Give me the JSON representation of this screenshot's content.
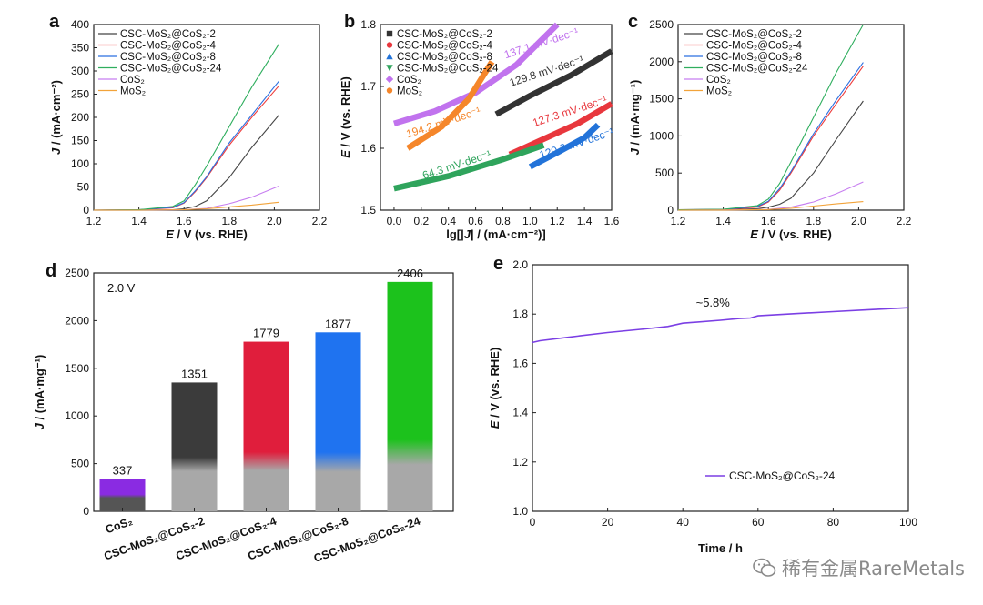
{
  "chart_data": [
    {
      "panel": "a",
      "type": "line",
      "xlabel": {
        "italic": "E",
        "rest": " / V (vs. RHE)"
      },
      "ylabel": {
        "italic": "J",
        "rest": " / (mA·cm⁻²)"
      },
      "xlim": [
        1.2,
        2.2
      ],
      "ylim": [
        0,
        400
      ],
      "xticks": [
        1.2,
        1.4,
        1.6,
        1.8,
        2.0,
        2.2
      ],
      "yticks": [
        0,
        50,
        100,
        150,
        200,
        250,
        300,
        350,
        400
      ],
      "legend_position": "top-left",
      "series": [
        {
          "name": "CSC-MoS₂@CoS₂-2",
          "color": "#444444",
          "x": [
            1.2,
            1.4,
            1.55,
            1.6,
            1.65,
            1.7,
            1.8,
            1.9,
            2.02
          ],
          "y": [
            0,
            0,
            1,
            3,
            8,
            20,
            70,
            135,
            205
          ]
        },
        {
          "name": "CSC-MoS₂@CoS₂-4",
          "color": "#ee3b3b",
          "x": [
            1.2,
            1.4,
            1.55,
            1.6,
            1.65,
            1.7,
            1.8,
            1.9,
            2.02
          ],
          "y": [
            0,
            1,
            5,
            15,
            40,
            70,
            140,
            200,
            268
          ]
        },
        {
          "name": "CSC-MoS₂@CoS₂-8",
          "color": "#2b6fe0",
          "x": [
            1.2,
            1.4,
            1.55,
            1.6,
            1.65,
            1.7,
            1.8,
            1.9,
            2.02
          ],
          "y": [
            0,
            1,
            6,
            16,
            42,
            72,
            145,
            205,
            278
          ]
        },
        {
          "name": "CSC-MoS₂@CoS₂-24",
          "color": "#2fae5e",
          "x": [
            1.2,
            1.4,
            1.55,
            1.6,
            1.65,
            1.7,
            1.8,
            1.9,
            2.02
          ],
          "y": [
            0,
            1,
            8,
            20,
            55,
            95,
            180,
            265,
            358
          ]
        },
        {
          "name": "CoS₂",
          "color": "#c77ef0",
          "x": [
            1.2,
            1.4,
            1.6,
            1.7,
            1.8,
            1.9,
            2.02
          ],
          "y": [
            0,
            0,
            1,
            4,
            14,
            28,
            52
          ]
        },
        {
          "name": "MoS₂",
          "color": "#f2a33a",
          "x": [
            1.2,
            1.4,
            1.6,
            1.7,
            1.8,
            1.9,
            2.02
          ],
          "y": [
            0,
            0,
            1,
            3,
            7,
            11,
            17
          ]
        }
      ]
    },
    {
      "panel": "b",
      "type": "line",
      "xlabel": {
        "pre": "lg[|",
        "italic": "J",
        "rest": "| / (mA·cm⁻²)]"
      },
      "ylabel": {
        "italic": "E",
        "rest": " / V (vs. RHE)"
      },
      "xlim": [
        -0.1,
        1.6
      ],
      "ylim": [
        1.5,
        1.8
      ],
      "xticks": [
        0.0,
        0.2,
        0.4,
        0.6,
        0.8,
        1.0,
        1.2,
        1.4,
        1.6
      ],
      "yticks": [
        1.5,
        1.6,
        1.7,
        1.8
      ],
      "legend_position": "top-left",
      "legend": [
        {
          "name": "CSC-MoS₂@CoS₂-2",
          "color": "#333333",
          "marker": "square"
        },
        {
          "name": "CSC-MoS₂@CoS₂-4",
          "color": "#e8373d",
          "marker": "circle"
        },
        {
          "name": "CSC-MoS₂@CoS₂-8",
          "color": "#2273d9",
          "marker": "triangle-up"
        },
        {
          "name": "CSC-MoS₂@CoS₂-24",
          "color": "#2fa45c",
          "marker": "triangle-down"
        },
        {
          "name": "CoS₂",
          "color": "#c173ee",
          "marker": "diamond"
        },
        {
          "name": "MoS₂",
          "color": "#f5862a",
          "marker": "circle"
        }
      ],
      "series": [
        {
          "color": "#333333",
          "x": [
            0.75,
            1.0,
            1.3,
            1.6
          ],
          "y": [
            1.655,
            1.685,
            1.718,
            1.757
          ]
        },
        {
          "color": "#e8373d",
          "x": [
            0.85,
            1.1,
            1.35,
            1.6
          ],
          "y": [
            1.59,
            1.615,
            1.64,
            1.672
          ]
        },
        {
          "color": "#2273d9",
          "x": [
            1.0,
            1.2,
            1.4,
            1.5
          ],
          "y": [
            1.57,
            1.593,
            1.617,
            1.638
          ]
        },
        {
          "color": "#2fa45c",
          "x": [
            0.0,
            0.4,
            0.8,
            1.1
          ],
          "y": [
            1.535,
            1.555,
            1.582,
            1.605
          ]
        },
        {
          "color": "#c173ee",
          "x": [
            0.0,
            0.3,
            0.6,
            0.9,
            1.2
          ],
          "y": [
            1.64,
            1.66,
            1.69,
            1.735,
            1.8
          ]
        },
        {
          "color": "#f5862a",
          "x": [
            0.1,
            0.35,
            0.55,
            0.72
          ],
          "y": [
            1.6,
            1.635,
            1.68,
            1.74
          ]
        }
      ],
      "annotations": [
        {
          "text": "137.1 mV·dec⁻¹",
          "color": "#c173ee",
          "x": 0.82,
          "y": 1.745
        },
        {
          "text": "129.8 mV·dec⁻¹",
          "color": "#333333",
          "x": 0.86,
          "y": 1.7
        },
        {
          "text": "194.2 mV·dec⁻¹",
          "color": "#f5862a",
          "x": 0.1,
          "y": 1.617
        },
        {
          "text": "127.3 mV·dec⁻¹",
          "color": "#e8373d",
          "x": 1.03,
          "y": 1.635
        },
        {
          "text": "64.3 mV·dec⁻¹",
          "color": "#2fa45c",
          "x": 0.22,
          "y": 1.55
        },
        {
          "text": "120.2 mV·dec⁻¹",
          "color": "#2273d9",
          "x": 1.08,
          "y": 1.583
        }
      ]
    },
    {
      "panel": "c",
      "type": "line",
      "xlabel": {
        "italic": "E",
        "rest": " / V (vs. RHE)"
      },
      "ylabel": {
        "italic": "J",
        "rest": " / (mA·mg⁻¹)"
      },
      "xlim": [
        1.2,
        2.2
      ],
      "ylim": [
        0,
        2500
      ],
      "xticks": [
        1.2,
        1.4,
        1.6,
        1.8,
        2.0,
        2.2
      ],
      "yticks": [
        0,
        500,
        1000,
        1500,
        2000,
        2500
      ],
      "legend_position": "top-left",
      "series": [
        {
          "name": "CSC-MoS₂@CoS₂-2",
          "color": "#444444",
          "x": [
            1.2,
            1.4,
            1.55,
            1.6,
            1.65,
            1.7,
            1.8,
            1.9,
            2.02
          ],
          "y": [
            0,
            5,
            20,
            40,
            80,
            160,
            500,
            950,
            1470
          ]
        },
        {
          "name": "CSC-MoS₂@CoS₂-4",
          "color": "#ee3b3b",
          "x": [
            1.2,
            1.4,
            1.55,
            1.6,
            1.65,
            1.7,
            1.8,
            1.9,
            2.02
          ],
          "y": [
            5,
            10,
            40,
            110,
            270,
            500,
            1000,
            1430,
            1940
          ]
        },
        {
          "name": "CSC-MoS₂@CoS₂-8",
          "color": "#2b6fe0",
          "x": [
            1.2,
            1.4,
            1.55,
            1.6,
            1.65,
            1.7,
            1.8,
            1.9,
            2.02
          ],
          "y": [
            5,
            10,
            50,
            120,
            290,
            520,
            1030,
            1480,
            1990
          ]
        },
        {
          "name": "CSC-MoS₂@CoS₂-24",
          "color": "#2fae5e",
          "x": [
            1.2,
            1.4,
            1.55,
            1.6,
            1.65,
            1.7,
            1.8,
            1.9,
            2.02
          ],
          "y": [
            5,
            12,
            60,
            150,
            360,
            650,
            1250,
            1850,
            2500
          ]
        },
        {
          "name": "CoS₂",
          "color": "#c77ef0",
          "x": [
            1.2,
            1.4,
            1.6,
            1.7,
            1.8,
            1.9,
            2.02
          ],
          "y": [
            0,
            2,
            10,
            40,
            110,
            220,
            380
          ]
        },
        {
          "name": "MoS₂",
          "color": "#f2a33a",
          "x": [
            1.2,
            1.4,
            1.6,
            1.7,
            1.8,
            1.9,
            2.02
          ],
          "y": [
            0,
            1,
            8,
            25,
            55,
            85,
            115
          ]
        }
      ]
    },
    {
      "panel": "d",
      "type": "bar",
      "ylabel": {
        "italic": "J",
        "rest": " / (mA·mg⁻¹)"
      },
      "ylim": [
        0,
        2500
      ],
      "yticks": [
        0,
        500,
        1000,
        1500,
        2000,
        2500
      ],
      "inset_text": "2.0 V",
      "categories": [
        "CoS₂",
        "CSC-MoS₂@CoS₂-2",
        "CSC-MoS₂@CoS₂-4",
        "CSC-MoS₂@CoS₂-8",
        "CSC-MoS₂@CoS₂-24"
      ],
      "values": [
        337,
        1351,
        1779,
        1877,
        2406
      ],
      "value_labels": [
        "337",
        "1351",
        "1779",
        "1877",
        "2406"
      ],
      "colors": [
        "#8a2be2",
        "#3b3b3b",
        "#e01e3c",
        "#1f73f0",
        "#1cc21c"
      ],
      "base_colors": [
        "#555555",
        "#a8a8a8",
        "#a8a8a8",
        "#a8a8a8",
        "#a8a8a8"
      ],
      "base_values": [
        150,
        460,
        480,
        470,
        560
      ]
    },
    {
      "panel": "e",
      "type": "line",
      "xlabel": {
        "italic": "",
        "rest": "Time / h"
      },
      "ylabel": {
        "italic": "E",
        "rest": " / V (vs. RHE)"
      },
      "xlim": [
        0,
        100
      ],
      "ylim": [
        1.0,
        2.0
      ],
      "xticks": [
        0,
        20,
        40,
        60,
        80,
        100
      ],
      "yticks": [
        1.0,
        1.2,
        1.4,
        1.6,
        1.8,
        2.0
      ],
      "annotation": {
        "text": "~5.8%",
        "x": 48,
        "y": 1.83
      },
      "legend_position": "bottom-right",
      "series": [
        {
          "name": "CSC-MoS₂@CoS₂-24",
          "color": "#7b3fe4",
          "x": [
            0,
            2,
            10,
            20,
            30,
            36,
            40,
            50,
            55,
            58,
            60,
            70,
            80,
            90,
            100
          ],
          "y": [
            1.685,
            1.692,
            1.707,
            1.725,
            1.74,
            1.75,
            1.763,
            1.775,
            1.782,
            1.784,
            1.793,
            1.802,
            1.81,
            1.818,
            1.826
          ]
        }
      ]
    }
  ],
  "watermark": {
    "text": "稀有金属RareMetals",
    "icon": "wechat-icon"
  }
}
